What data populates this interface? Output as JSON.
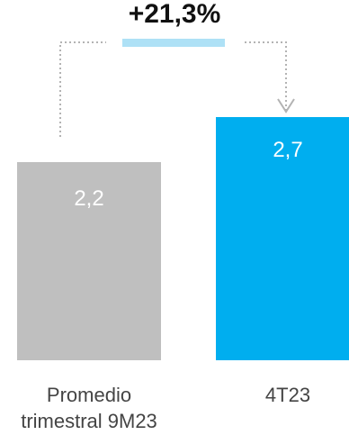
{
  "chart_data": {
    "type": "bar",
    "categories": [
      "Promedio\ntrimestral 9M23",
      "4T23"
    ],
    "values": [
      2.2,
      2.7
    ],
    "value_labels": [
      "2,2",
      "2,7"
    ],
    "colors": [
      "#bfbfbf",
      "#00aeef"
    ],
    "annotation": "+21,3%",
    "annotation_color": "#aee1f6",
    "connector_color": "#b3b3b3",
    "ylim": [
      0,
      2.7
    ],
    "grid": false
  }
}
